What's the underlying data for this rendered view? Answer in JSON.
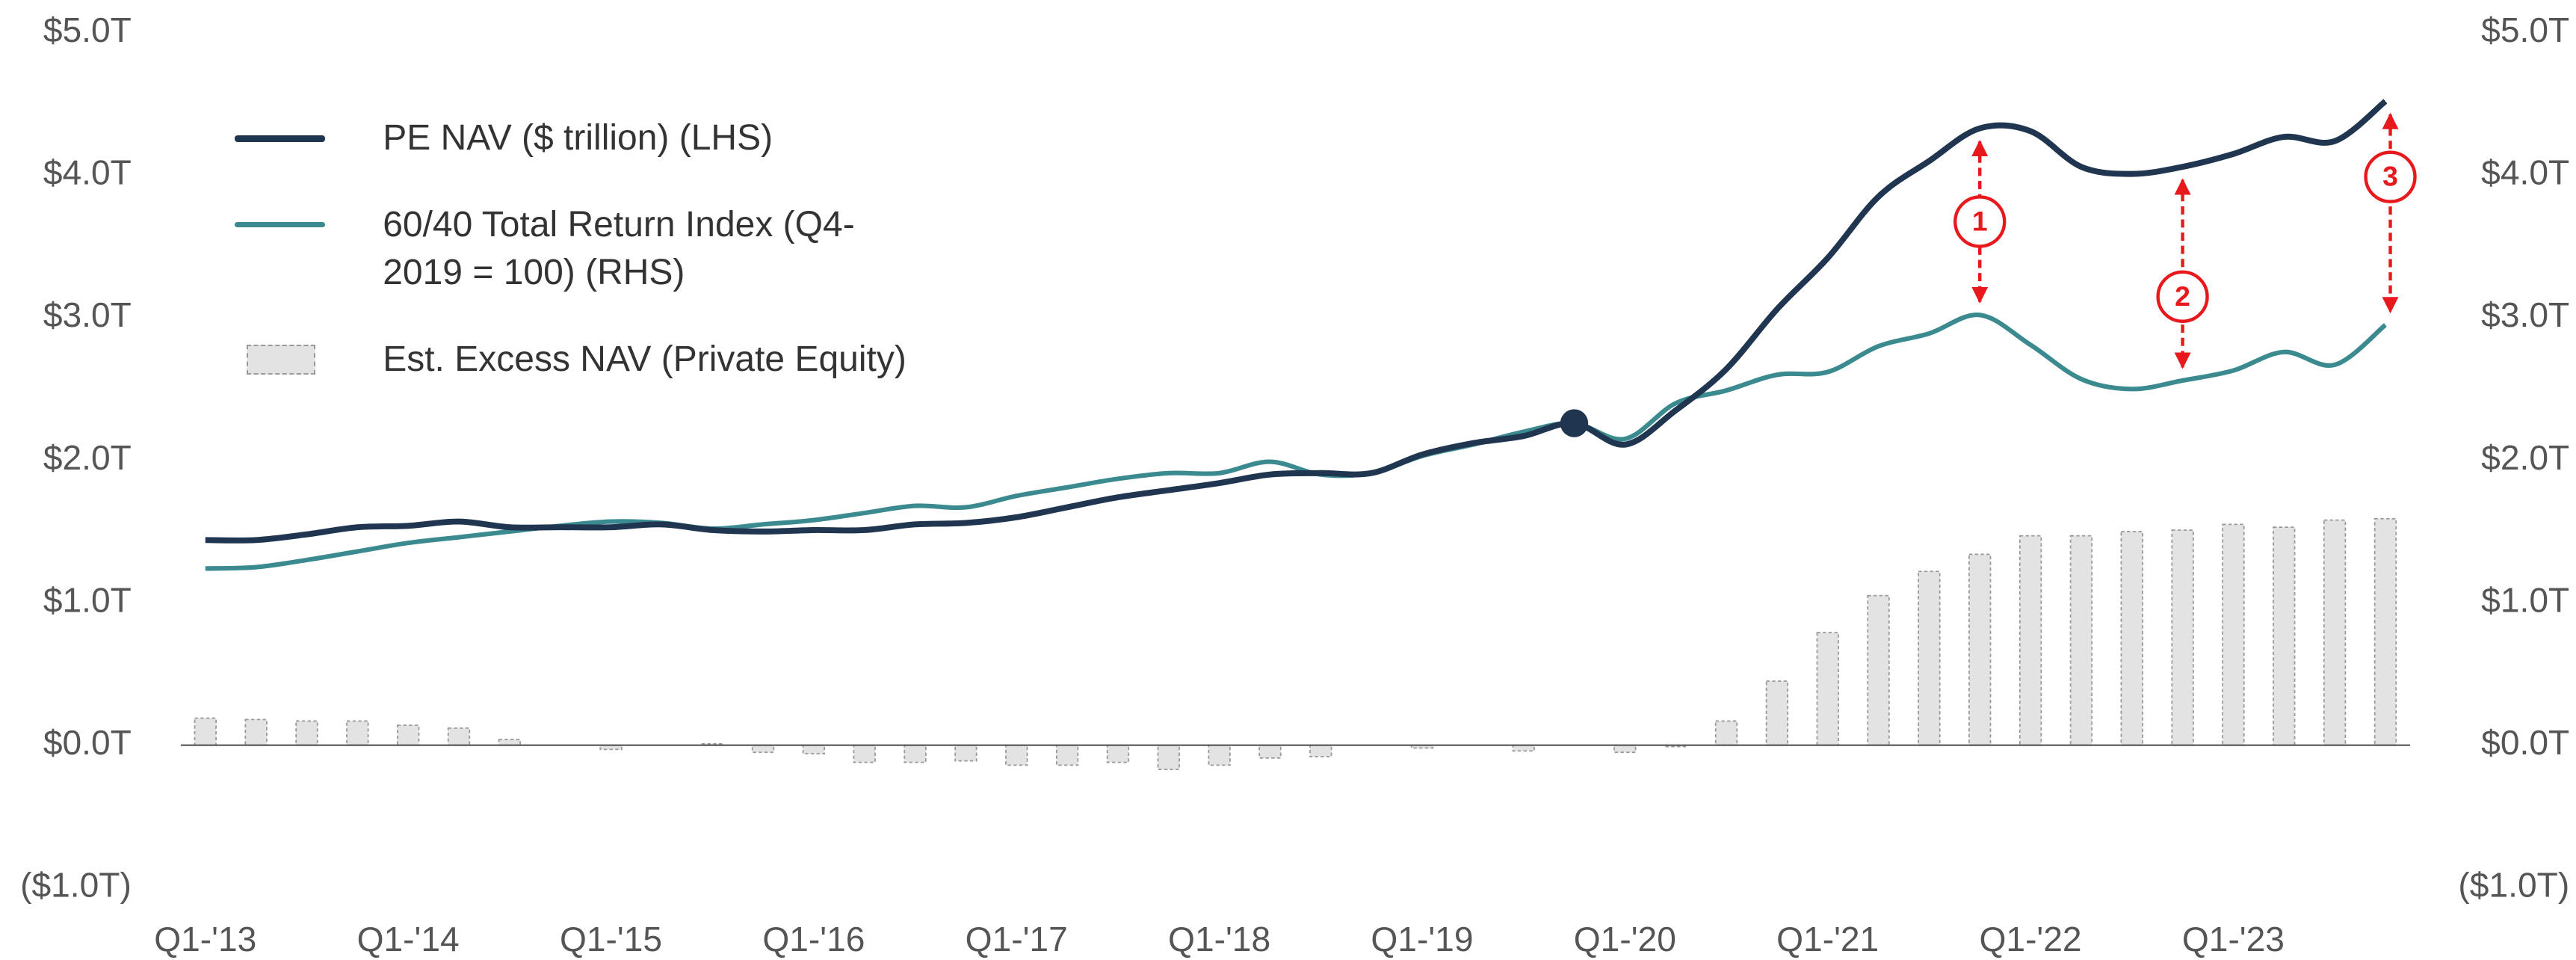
{
  "chart_data": {
    "type": "bar-line",
    "categories": [
      "Q1-'13",
      null,
      null,
      null,
      "Q1-'14",
      null,
      null,
      null,
      "Q1-'15",
      null,
      null,
      null,
      "Q1-'16",
      null,
      null,
      null,
      "Q1-'17",
      null,
      null,
      null,
      "Q1-'18",
      null,
      null,
      null,
      "Q1-'19",
      null,
      null,
      null,
      "Q1-'20",
      null,
      null,
      null,
      "Q1-'21",
      null,
      null,
      null,
      "Q1-'22",
      null,
      null,
      null,
      "Q1-'23",
      null,
      null,
      null
    ],
    "series": [
      {
        "name": "PE NAV ($ trillion) (LHS)",
        "type": "line",
        "color": "#1f3550",
        "values": [
          1.44,
          1.44,
          1.48,
          1.53,
          1.54,
          1.57,
          1.53,
          1.53,
          1.53,
          1.55,
          1.51,
          1.5,
          1.51,
          1.51,
          1.55,
          1.56,
          1.6,
          1.67,
          1.74,
          1.79,
          1.84,
          1.9,
          1.91,
          1.91,
          2.04,
          2.12,
          2.17,
          2.26,
          2.11,
          2.35,
          2.64,
          3.06,
          3.42,
          3.85,
          4.1,
          4.33,
          4.31,
          4.06,
          4.01,
          4.06,
          4.15,
          4.27,
          4.24,
          4.52
        ]
      },
      {
        "name": "60/40 Total Return Index (Q4-2019 = 100) (RHS)",
        "type": "line",
        "axis": "y2",
        "color": "#3a8a8f",
        "values": [
          1.24,
          1.25,
          1.3,
          1.36,
          1.42,
          1.46,
          1.5,
          1.54,
          1.57,
          1.56,
          1.52,
          1.55,
          1.58,
          1.63,
          1.68,
          1.67,
          1.75,
          1.81,
          1.87,
          1.91,
          1.91,
          1.99,
          1.9,
          1.91,
          2.03,
          2.11,
          2.2,
          2.26,
          2.15,
          2.4,
          2.49,
          2.6,
          2.62,
          2.8,
          2.89,
          3.02,
          2.81,
          2.57,
          2.5,
          2.56,
          2.63,
          2.76,
          2.67,
          2.95
        ]
      },
      {
        "name": "Est. Excess NAV (Private Equity)",
        "type": "bar",
        "color": "#e3e3e3",
        "values": [
          0.19,
          0.18,
          0.17,
          0.17,
          0.14,
          0.12,
          0.04,
          0,
          -0.03,
          0,
          0.01,
          -0.05,
          -0.06,
          -0.12,
          -0.12,
          -0.11,
          -0.14,
          -0.14,
          -0.12,
          -0.17,
          -0.14,
          -0.09,
          -0.08,
          0,
          -0.02,
          0,
          -0.04,
          0,
          -0.05,
          -0.01,
          0.17,
          0.45,
          0.79,
          1.05,
          1.22,
          1.34,
          1.47,
          1.47,
          1.5,
          1.51,
          1.55,
          1.53,
          1.58,
          1.59
        ]
      }
    ],
    "ylim": [
      -1,
      5
    ],
    "yticks": [
      {
        "value": -1,
        "label": "($1.0T)"
      },
      {
        "value": 0,
        "label": "$0.0T"
      },
      {
        "value": 1,
        "label": "$1.0T"
      },
      {
        "value": 2,
        "label": "$2.0T"
      },
      {
        "value": 3,
        "label": "$3.0T"
      },
      {
        "value": 4,
        "label": "$4.0T"
      },
      {
        "value": 5,
        "label": "$5.0T"
      }
    ],
    "y2lim": [
      -1,
      5
    ],
    "y2ticks": [
      {
        "value": -1,
        "label": "($1.0T)"
      },
      {
        "value": 0,
        "label": "$0.0T"
      },
      {
        "value": 1,
        "label": "$1.0T"
      },
      {
        "value": 2,
        "label": "$2.0T"
      },
      {
        "value": 3,
        "label": "$3.0T"
      },
      {
        "value": 4,
        "label": "$4.0T"
      },
      {
        "value": 5,
        "label": "$5.0T"
      }
    ],
    "annotations": [
      "1",
      "2",
      "3"
    ],
    "legend": "upper left"
  }
}
